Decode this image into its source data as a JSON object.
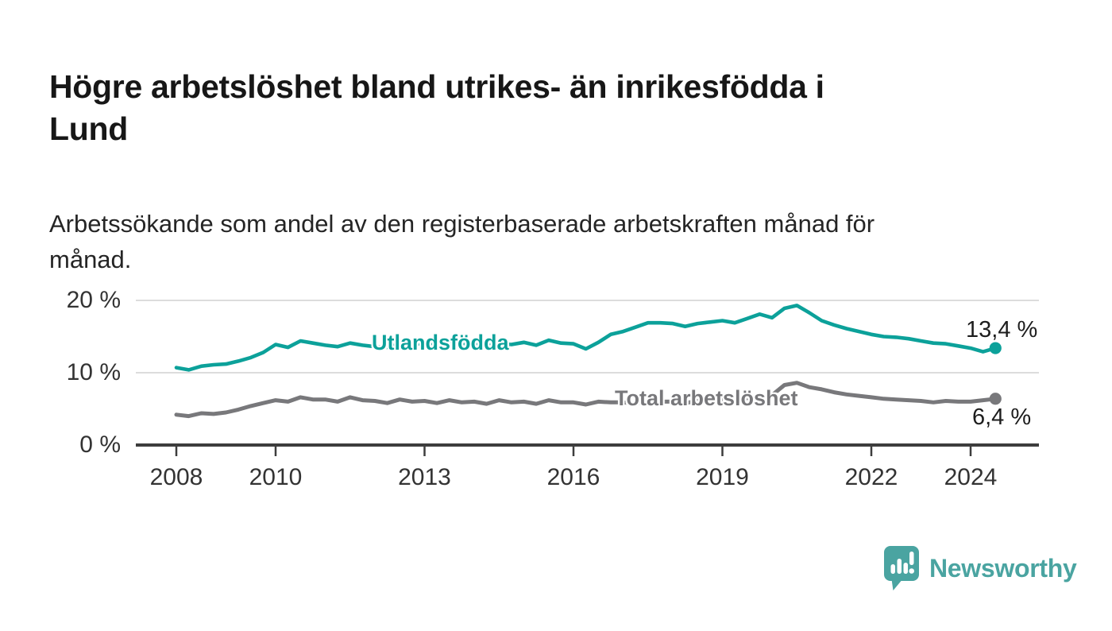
{
  "header": {
    "title": "Högre arbetslöshet bland utrikes- än inrikesfödda i Lund",
    "title_lines": [
      "Högre arbetslöshet bland utrikes- än inrikesfödda i",
      "Lund"
    ],
    "subtitle": "Arbetssökande som andel av den registerbaserade arbetskraften månad för månad.",
    "subtitle_lines": [
      "Arbetssökande som andel av den registerbaserade arbetskraften månad för",
      "månad."
    ]
  },
  "chart_data": {
    "type": "line",
    "title": "Högre arbetslöshet bland utrikes- än inrikesfödda i Lund",
    "subtitle": "Arbetssökande som andel av den registerbaserade arbetskraften månad för månad.",
    "unit": "%",
    "grid": true,
    "legend_position": "inline-on-lines",
    "x_start_year": 2008,
    "x_step_years": 0.25,
    "x_end_year": 2024.5,
    "x_axis": {
      "tick_years": [
        2008,
        2010,
        2013,
        2016,
        2019,
        2022,
        2024
      ],
      "tick_labels": [
        "2008",
        "2010",
        "2013",
        "2016",
        "2019",
        "2022",
        "2024"
      ]
    },
    "y_axis": {
      "ticks": [
        {
          "value": 0,
          "label": "0 %"
        },
        {
          "value": 10,
          "label": "10 %"
        },
        {
          "value": 20,
          "label": "20 %"
        }
      ],
      "range": [
        0,
        22
      ]
    },
    "series": [
      {
        "name": "Utlandsfödda",
        "color": "#0ca19a",
        "end_label": "13,4 %",
        "end_value": 13.4,
        "values": [
          10.7,
          10.4,
          10.9,
          11.1,
          11.2,
          11.6,
          12.1,
          12.8,
          13.9,
          13.5,
          14.4,
          14.1,
          13.8,
          13.6,
          14.1,
          13.8,
          13.6,
          13.5,
          14.0,
          13.9,
          14.1,
          13.8,
          14.2,
          14.0,
          14.1,
          13.7,
          14.0,
          13.9,
          14.2,
          13.8,
          14.5,
          14.1,
          14.0,
          13.3,
          14.2,
          15.3,
          15.7,
          16.3,
          16.9,
          16.9,
          16.8,
          16.4,
          16.8,
          17.0,
          17.2,
          16.9,
          17.5,
          18.1,
          17.6,
          18.9,
          19.3,
          18.3,
          17.2,
          16.6,
          16.1,
          15.7,
          15.3,
          15.0,
          14.9,
          14.7,
          14.4,
          14.1,
          14.0,
          13.7,
          13.4,
          12.9,
          13.4
        ]
      },
      {
        "name": "Total arbetslöshet",
        "color": "#78787b",
        "end_label": "6,4 %",
        "end_value": 6.4,
        "values": [
          4.2,
          4.0,
          4.4,
          4.3,
          4.5,
          4.9,
          5.4,
          5.8,
          6.2,
          6.0,
          6.6,
          6.3,
          6.3,
          6.0,
          6.6,
          6.2,
          6.1,
          5.8,
          6.3,
          6.0,
          6.1,
          5.8,
          6.2,
          5.9,
          6.0,
          5.7,
          6.2,
          5.9,
          6.0,
          5.7,
          6.2,
          5.9,
          5.9,
          5.6,
          6.0,
          5.9,
          5.9,
          5.7,
          6.1,
          6.0,
          6.0,
          5.8,
          6.1,
          6.2,
          6.2,
          6.1,
          6.5,
          6.6,
          6.9,
          8.3,
          8.6,
          8.0,
          7.7,
          7.3,
          7.0,
          6.8,
          6.6,
          6.4,
          6.3,
          6.2,
          6.1,
          5.9,
          6.1,
          6.0,
          6.0,
          6.2,
          6.4
        ]
      }
    ]
  },
  "branding": {
    "name": "Newsworthy",
    "color": "#4aa4a1",
    "icon": "newsworthy-speech-bubble-bar-chart-icon"
  },
  "colors": {
    "accent_teal": "#0ca19a",
    "series_gray": "#78787b",
    "grid": "#dcdcdc",
    "axis": "#3d3d3d",
    "text_dark": "#171717",
    "text_tick": "#333333"
  }
}
